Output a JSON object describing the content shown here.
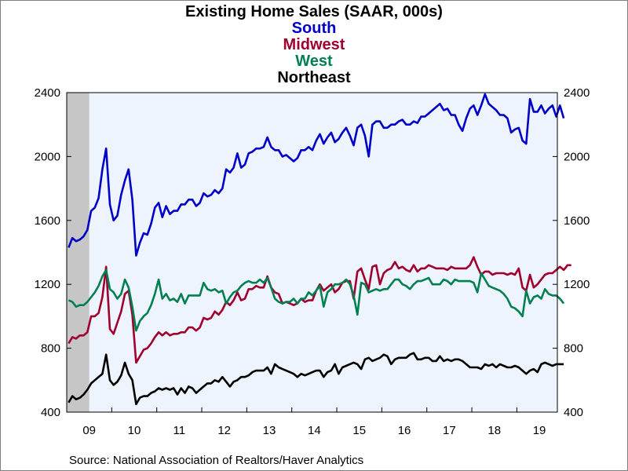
{
  "chart_data": {
    "type": "line",
    "title": "Existing Home Sales (SAAR, 000s)",
    "source": "Source:  National Association of Realtors/Haver Analytics",
    "ylim": [
      400,
      2400
    ],
    "yticks": [
      400,
      800,
      1200,
      1600,
      2000,
      2400
    ],
    "xlim": [
      2009.0,
      2019.9
    ],
    "xticks": [
      {
        "label": "09",
        "value": 2009.5
      },
      {
        "label": "10",
        "value": 2010.5
      },
      {
        "label": "11",
        "value": 2011.5
      },
      {
        "label": "12",
        "value": 2012.5
      },
      {
        "label": "13",
        "value": 2013.5
      },
      {
        "label": "14",
        "value": 2014.5
      },
      {
        "label": "15",
        "value": 2015.5
      },
      {
        "label": "16",
        "value": 2016.5
      },
      {
        "label": "17",
        "value": 2017.5
      },
      {
        "label": "18",
        "value": 2018.5
      },
      {
        "label": "19",
        "value": 2019.5
      }
    ],
    "recession": [
      2009.0,
      2009.5
    ],
    "x_start": "2009-01",
    "x_step": "month",
    "series": [
      {
        "name": "South",
        "color": "#0000c8",
        "values": [
          1430,
          1490,
          1470,
          1480,
          1500,
          1540,
          1660,
          1680,
          1740,
          1920,
          2050,
          1700,
          1600,
          1630,
          1760,
          1850,
          1920,
          1730,
          1380,
          1460,
          1520,
          1510,
          1580,
          1680,
          1710,
          1620,
          1690,
          1640,
          1660,
          1660,
          1700,
          1700,
          1730,
          1730,
          1690,
          1710,
          1770,
          1750,
          1760,
          1790,
          1770,
          1800,
          1920,
          1900,
          1930,
          2020,
          1930,
          1950,
          2020,
          2030,
          2050,
          2050,
          2060,
          2120,
          2060,
          2040,
          2040,
          2000,
          2010,
          1990,
          1970,
          1990,
          2040,
          2040,
          2060,
          2040,
          2100,
          2140,
          2080,
          2120,
          2150,
          2090,
          2110,
          2150,
          2180,
          2130,
          2070,
          2180,
          2200,
          2130,
          2000,
          2200,
          2220,
          2220,
          2180,
          2180,
          2200,
          2200,
          2220,
          2230,
          2200,
          2200,
          2220,
          2210,
          2250,
          2250,
          2270,
          2290,
          2310,
          2330,
          2290,
          2300,
          2260,
          2260,
          2200,
          2160,
          2240,
          2300,
          2320,
          2260,
          2320,
          2390,
          2330,
          2310,
          2290,
          2260,
          2260,
          2240,
          2150,
          2170,
          2180,
          2100,
          2080,
          2360,
          2280,
          2280,
          2320,
          2270,
          2300,
          2320,
          2250,
          2320,
          2240
        ]
      },
      {
        "name": "Midwest",
        "color": "#a0002d",
        "values": [
          830,
          870,
          860,
          880,
          880,
          900,
          1000,
          1000,
          1020,
          1120,
          1310,
          920,
          890,
          960,
          1030,
          1140,
          1160,
          1010,
          710,
          750,
          790,
          800,
          830,
          870,
          900,
          880,
          900,
          880,
          890,
          890,
          900,
          900,
          930,
          930,
          910,
          930,
          990,
          980,
          990,
          1030,
          1010,
          1040,
          1090,
          1070,
          1100,
          1150,
          1100,
          1110,
          1170,
          1170,
          1190,
          1180,
          1180,
          1250,
          1180,
          1150,
          1140,
          1080,
          1090,
          1080,
          1070,
          1080,
          1110,
          1090,
          1100,
          1100,
          1160,
          1200,
          1160,
          1180,
          1200,
          1150,
          1170,
          1210,
          1220,
          1220,
          1110,
          1280,
          1300,
          1230,
          1170,
          1310,
          1320,
          1200,
          1270,
          1290,
          1300,
          1340,
          1300,
          1310,
          1290,
          1280,
          1320,
          1280,
          1300,
          1300,
          1320,
          1310,
          1300,
          1300,
          1300,
          1290,
          1310,
          1300,
          1300,
          1300,
          1300,
          1320,
          1370,
          1310,
          1260,
          1280,
          1280,
          1260,
          1270,
          1270,
          1270,
          1260,
          1270,
          1260,
          1300,
          1180,
          1160,
          1260,
          1180,
          1200,
          1230,
          1260,
          1270,
          1270,
          1290,
          1310,
          1290,
          1320,
          1320
        ]
      },
      {
        "name": "West",
        "color": "#008050",
        "values": [
          1100,
          1090,
          1060,
          1070,
          1070,
          1090,
          1120,
          1150,
          1190,
          1250,
          1290,
          1170,
          1150,
          1110,
          1140,
          1230,
          1180,
          1060,
          910,
          970,
          1000,
          1020,
          1070,
          1140,
          1230,
          1110,
          1140,
          1100,
          1110,
          1090,
          1140,
          1080,
          1130,
          1130,
          1130,
          1130,
          1210,
          1170,
          1160,
          1170,
          1150,
          1160,
          1080,
          1120,
          1150,
          1160,
          1190,
          1210,
          1220,
          1210,
          1210,
          1230,
          1210,
          1240,
          1180,
          1110,
          1090,
          1080,
          1090,
          1090,
          1110,
          1080,
          1110,
          1110,
          1150,
          1130,
          1160,
          1190,
          1060,
          1150,
          1170,
          1200,
          1200,
          1210,
          1230,
          1200,
          1130,
          1010,
          1210,
          1200,
          1150,
          1160,
          1170,
          1160,
          1170,
          1170,
          1200,
          1230,
          1230,
          1200,
          1190,
          1170,
          1200,
          1220,
          1220,
          1230,
          1240,
          1200,
          1200,
          1200,
          1230,
          1220,
          1200,
          1230,
          1220,
          1220,
          1220,
          1220,
          1210,
          1150,
          1270,
          1230,
          1190,
          1180,
          1170,
          1160,
          1140,
          1110,
          1060,
          1050,
          1030,
          1000,
          1160,
          1080,
          1120,
          1130,
          1110,
          1170,
          1140,
          1130,
          1130,
          1110,
          1080
        ]
      },
      {
        "name": "Northeast",
        "color": "#000000",
        "values": [
          460,
          500,
          480,
          490,
          510,
          540,
          580,
          600,
          620,
          640,
          760,
          600,
          570,
          590,
          630,
          710,
          640,
          600,
          450,
          490,
          500,
          500,
          520,
          530,
          550,
          540,
          550,
          540,
          550,
          510,
          550,
          520,
          560,
          550,
          520,
          540,
          560,
          580,
          580,
          600,
          590,
          620,
          590,
          560,
          590,
          600,
          620,
          620,
          630,
          650,
          660,
          660,
          660,
          680,
          640,
          700,
          680,
          670,
          660,
          650,
          640,
          620,
          640,
          630,
          640,
          650,
          660,
          660,
          620,
          650,
          660,
          700,
          640,
          680,
          690,
          700,
          710,
          700,
          670,
          730,
          740,
          720,
          730,
          740,
          760,
          750,
          700,
          730,
          740,
          740,
          740,
          760,
          770,
          730,
          730,
          740,
          740,
          720,
          720,
          750,
          720,
          730,
          720,
          730,
          730,
          720,
          700,
          680,
          680,
          680,
          670,
          700,
          690,
          700,
          680,
          700,
          690,
          680,
          680,
          690,
          680,
          660,
          640,
          660,
          670,
          650,
          700,
          710,
          700,
          690,
          700,
          700,
          700
        ]
      }
    ]
  }
}
